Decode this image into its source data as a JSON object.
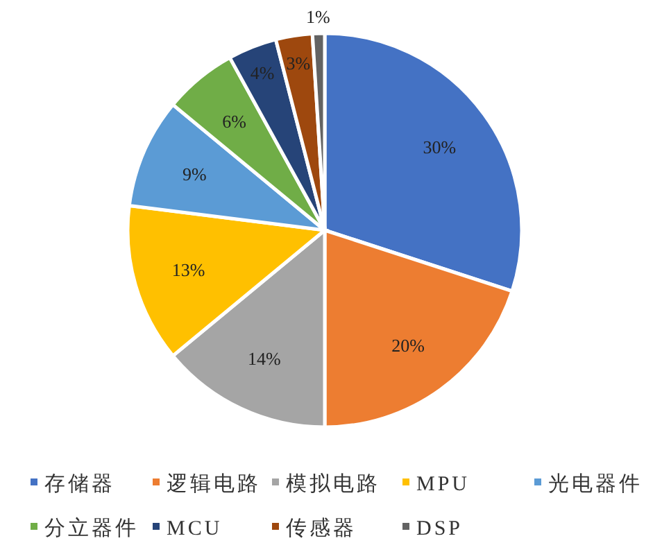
{
  "chart_data": {
    "type": "pie",
    "categories": [
      "存储器",
      "逻辑电路",
      "模拟电路",
      "MPU",
      "光电器件",
      "分立器件",
      "MCU",
      "传感器",
      "DSP"
    ],
    "values": [
      30,
      20,
      14,
      13,
      9,
      6,
      4,
      3,
      1
    ],
    "value_labels": [
      "30%",
      "20%",
      "14%",
      "13%",
      "9%",
      "6%",
      "4%",
      "3%",
      "1%"
    ],
    "colors": [
      "#4472c4",
      "#ed7d31",
      "#a5a5a5",
      "#ffc000",
      "#5b9bd5",
      "#70ad47",
      "#264478",
      "#9e480e",
      "#636363"
    ],
    "legend": "bottom"
  }
}
